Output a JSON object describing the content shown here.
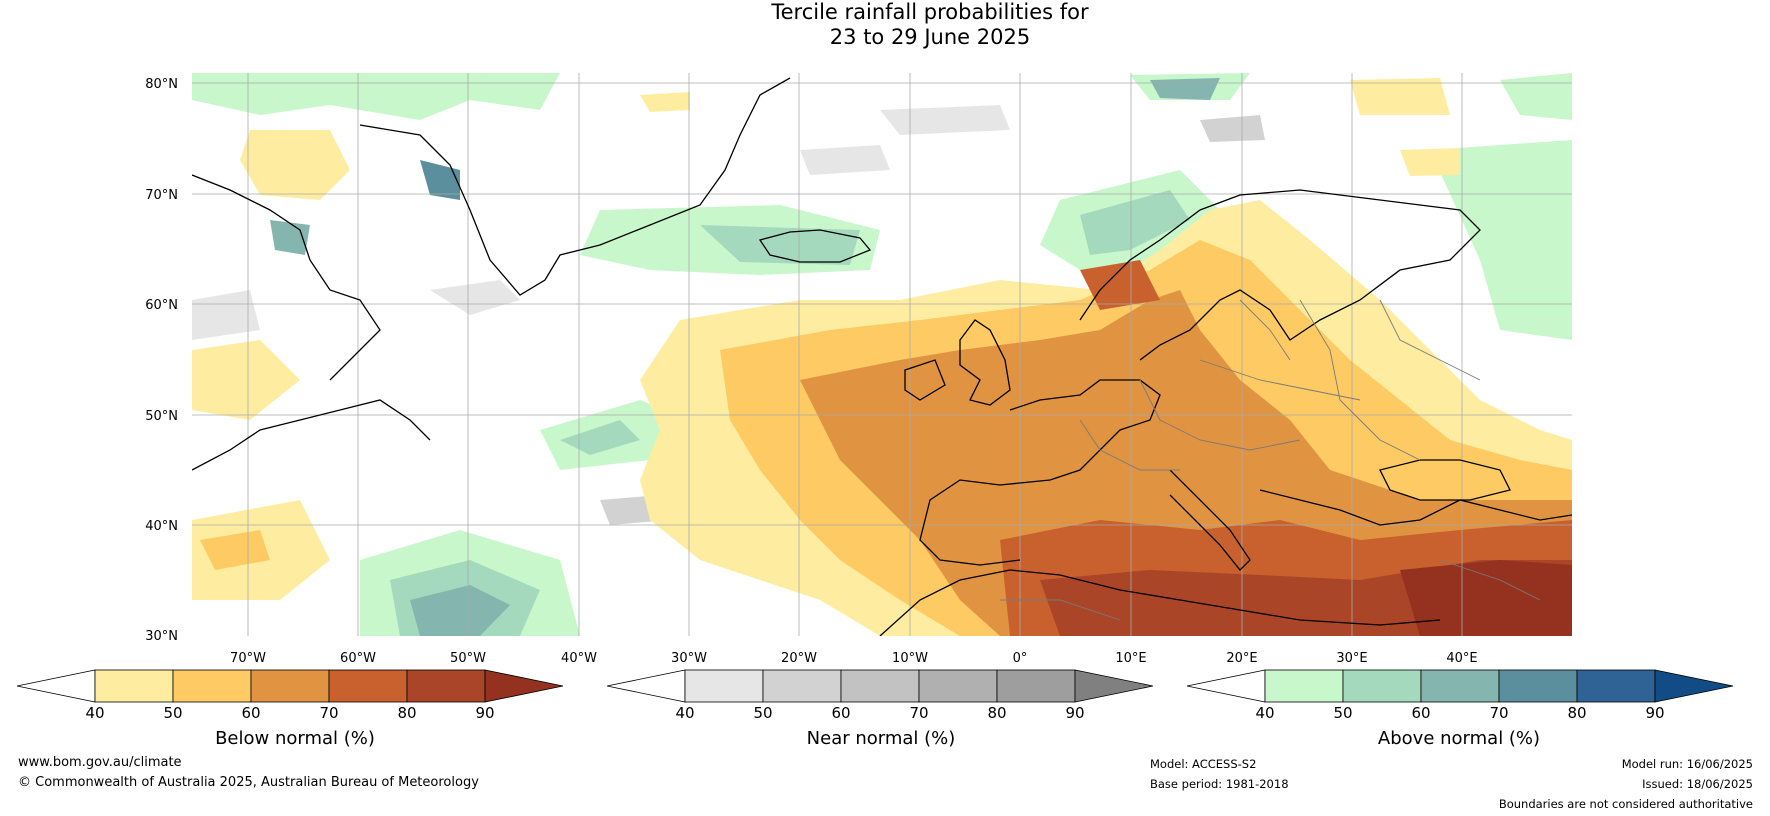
{
  "title": {
    "line1": "Tercile rainfall probabilities for",
    "line2": "23 to 29 June 2025"
  },
  "lat_labels": [
    "80°N",
    "70°N",
    "60°N",
    "50°N",
    "40°N",
    "30°N"
  ],
  "lon_labels": [
    "70°W",
    "60°W",
    "50°W",
    "40°W",
    "30°W",
    "20°W",
    "10°W",
    "0°",
    "10°E",
    "20°E",
    "30°E",
    "40°E"
  ],
  "colorbars": [
    {
      "label": "Below normal (%)",
      "ticks": [
        "40",
        "50",
        "60",
        "70",
        "80",
        "90"
      ],
      "colors": [
        "#ffffff",
        "#feeda0",
        "#fdca64",
        "#e09442",
        "#c8612e",
        "#ab4528",
        "#94321f"
      ]
    },
    {
      "label": "Near normal (%)",
      "ticks": [
        "40",
        "50",
        "60",
        "70",
        "80",
        "90"
      ],
      "colors": [
        "#ffffff",
        "#e6e6e6",
        "#d2d2d2",
        "#c2c2c2",
        "#b0b0b0",
        "#9e9e9e",
        "#808080"
      ]
    },
    {
      "label": "Above normal (%)",
      "ticks": [
        "40",
        "50",
        "60",
        "70",
        "80",
        "90"
      ],
      "colors": [
        "#ffffff",
        "#c8f7cc",
        "#a4d9bd",
        "#84b5ae",
        "#5b8f9e",
        "#2f6396",
        "#124c86"
      ]
    }
  ],
  "footer": {
    "website": "www.bom.gov.au/climate",
    "copyright": "© Commonwealth of Australia 2025, Australian Bureau of Meteorology",
    "model": "Model: ACCESS-S2",
    "base_period": "Base period: 1981-2018",
    "model_run": "Model run: 16/06/2025",
    "issued": "Issued: 18/06/2025",
    "disclaimer": "Boundaries are not considered authoritative"
  }
}
